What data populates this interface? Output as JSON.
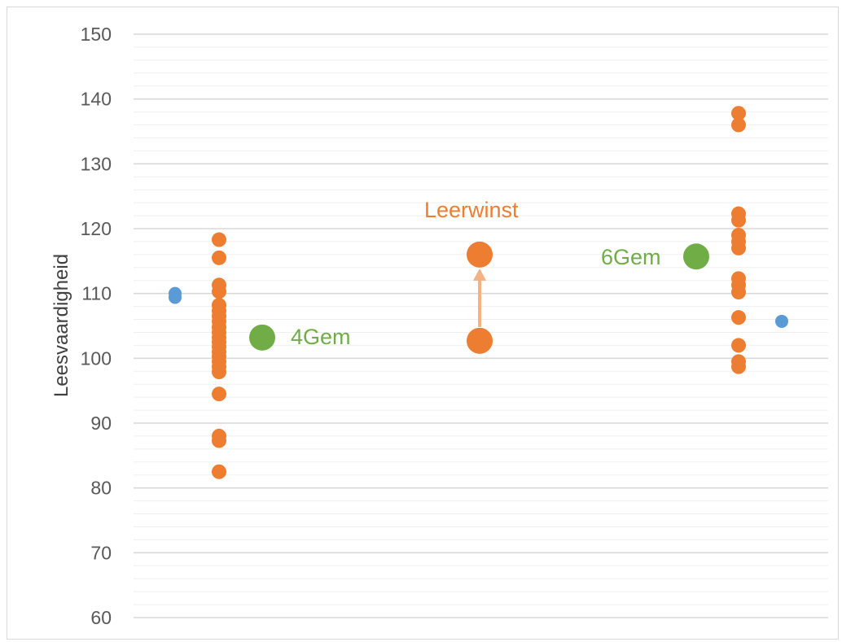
{
  "chart_data": {
    "type": "scatter",
    "title": "",
    "xlabel": "",
    "ylabel": "Leesvaardigheid",
    "ylim": [
      60,
      150
    ],
    "yticks": [
      60,
      70,
      80,
      90,
      100,
      110,
      120,
      130,
      140,
      150
    ],
    "grid": "major and minor horizontal gridlines",
    "legend": "none",
    "colors": {
      "orange": "#ed7d31",
      "green": "#70ad47",
      "blue": "#5b9bd5",
      "grid_major": "#d9d9d9",
      "grid_minor": "#efefef"
    },
    "series": [
      {
        "group": "grade4",
        "color": "#ed7d31",
        "values": [
          118.3,
          115.5,
          111.3,
          110.3,
          108.2,
          107.3,
          106.5,
          105.7,
          104.8,
          104.0,
          103.2,
          102.5,
          101.8,
          101.0,
          100.3,
          99.5,
          98.7,
          97.9,
          94.5,
          88.0,
          87.3,
          82.5
        ]
      },
      {
        "group": "grade4-mean",
        "color": "#70ad47",
        "values": [
          103.2
        ]
      },
      {
        "group": "grade4-outlier",
        "color": "#5b9bd5",
        "values": [
          110.0,
          109.4
        ]
      },
      {
        "group": "leerwinst",
        "color": "#ed7d31",
        "values": [
          102.7,
          116.0
        ]
      },
      {
        "group": "grade6",
        "color": "#ed7d31",
        "values": [
          137.8,
          136.0,
          122.3,
          121.3,
          119.0,
          118.0,
          117.0,
          112.3,
          111.3,
          110.2,
          106.3,
          102.0,
          99.5,
          98.7
        ]
      },
      {
        "group": "grade6-mean",
        "color": "#70ad47",
        "values": [
          115.7
        ]
      },
      {
        "group": "grade6-outlier",
        "color": "#5b9bd5",
        "values": [
          105.7
        ]
      }
    ],
    "annotations": [
      {
        "text": "4Gem",
        "color": "#70ad47"
      },
      {
        "text": "Leerwinst",
        "color": "#ed7d31"
      },
      {
        "text": "6Gem",
        "color": "#70ad47"
      }
    ]
  }
}
